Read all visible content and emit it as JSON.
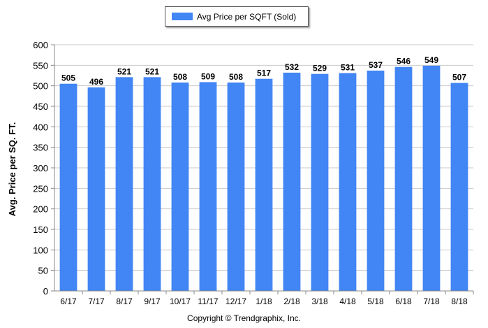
{
  "legend": {
    "label": "Avg Price per SQFT (Sold)"
  },
  "footer": {
    "copyright": "Copyright © Trendgraphix, Inc."
  },
  "chart_data": {
    "type": "bar",
    "ylabel": "Avg. Price per SQ. FT.",
    "xlabel": "",
    "ylim": [
      0,
      600
    ],
    "yticks": [
      0,
      50,
      100,
      150,
      200,
      250,
      300,
      350,
      400,
      450,
      500,
      550,
      600
    ],
    "categories": [
      "6/17",
      "7/17",
      "8/17",
      "9/17",
      "10/17",
      "11/17",
      "12/17",
      "1/18",
      "2/18",
      "3/18",
      "4/18",
      "5/18",
      "6/18",
      "7/18",
      "8/18"
    ],
    "series": [
      {
        "name": "Avg Price per SQFT (Sold)",
        "values": [
          505,
          496,
          521,
          521,
          508,
          509,
          508,
          517,
          532,
          529,
          531,
          537,
          546,
          549,
          507
        ]
      }
    ],
    "grid": true,
    "legend_position": "top-center",
    "bar_color": "#4285f4"
  }
}
